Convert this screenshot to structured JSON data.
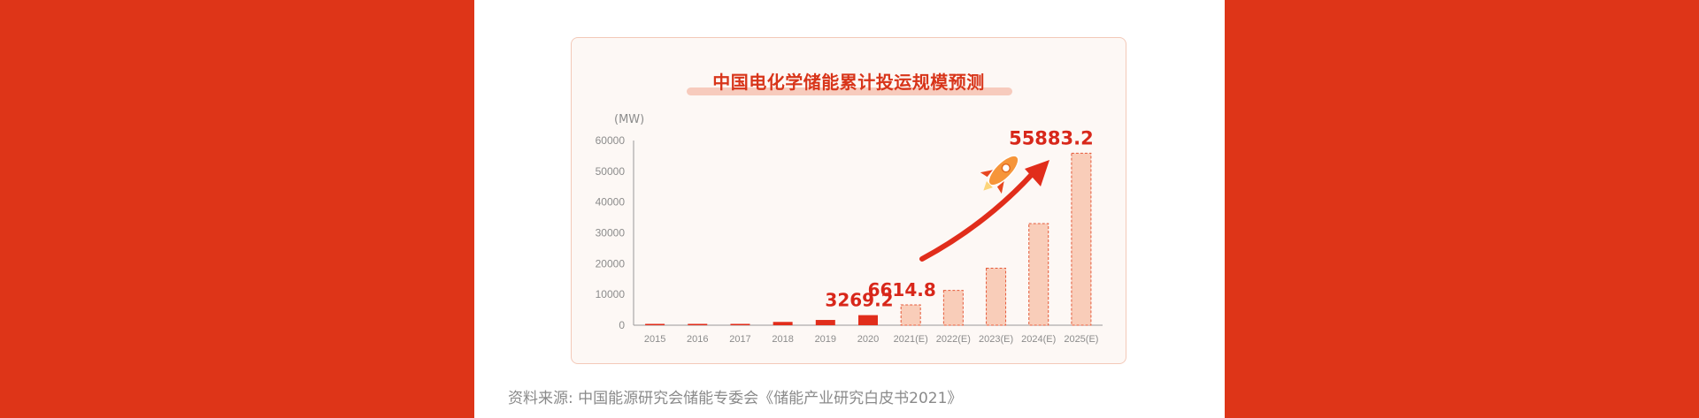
{
  "source_label": "资料来源:",
  "source_text": "中国能源研究会储能专委会《储能产业研究白皮书2021》",
  "chart_data": {
    "type": "bar",
    "title": "中国电化学储能累计投运规模预测",
    "ylabel": "(MW)",
    "ylim": [
      0,
      60000
    ],
    "yticks": [
      0,
      10000,
      20000,
      30000,
      40000,
      50000,
      60000
    ],
    "categories": [
      "2015",
      "2016",
      "2017",
      "2018",
      "2019",
      "2020",
      "2021(E)",
      "2022(E)",
      "2023(E)",
      "2024(E)",
      "2025(E)"
    ],
    "values": [
      140,
      240,
      390,
      1070,
      1710,
      3269.2,
      6614.8,
      11300,
      18500,
      33000,
      55883.2
    ],
    "forecast": [
      false,
      false,
      false,
      false,
      false,
      false,
      true,
      true,
      true,
      true,
      true
    ],
    "value_labels": [
      {
        "index": 5,
        "text": "3269.2"
      },
      {
        "index": 6,
        "text": "6614.8"
      },
      {
        "index": 10,
        "text": "55883.2"
      }
    ],
    "colors": {
      "actual": "#e12d1b",
      "forecast_fill": "#f9cdb9",
      "forecast_border": "#e55a3a",
      "label": "#d8271a",
      "axis": "#999999",
      "tick_text": "#8c8c8c"
    },
    "decorations": [
      "rocket-icon",
      "growth-arrow"
    ]
  }
}
